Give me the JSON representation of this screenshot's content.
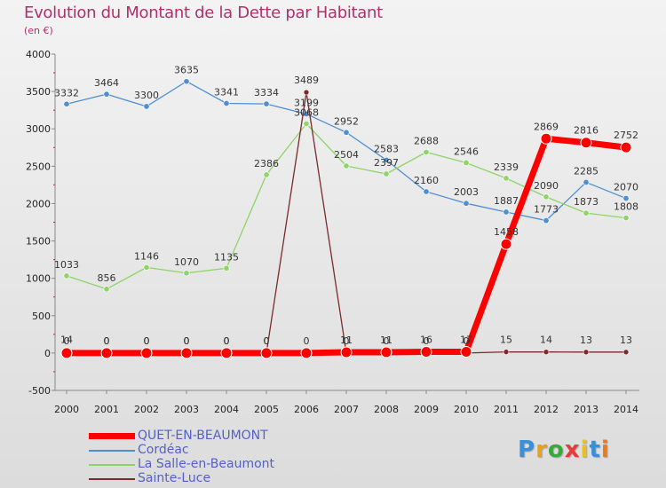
{
  "title": "Evolution du Montant de la Dette par Habitant",
  "subtitle": "(en €)",
  "brand": "Proxiti",
  "chart_data": {
    "type": "line",
    "title": "Evolution du Montant de la Dette par Habitant",
    "subtitle": "(en €)",
    "x": [
      2000,
      2001,
      2002,
      2003,
      2004,
      2005,
      2006,
      2007,
      2008,
      2009,
      2010,
      2011,
      2012,
      2013,
      2014
    ],
    "ylim": [
      -500,
      4000
    ],
    "yticks": [
      -500,
      0,
      500,
      1000,
      1500,
      2000,
      2500,
      3000,
      3500,
      4000
    ],
    "grid": false,
    "legend_position": "bottom-left",
    "series": [
      {
        "name": "Cordéac",
        "color": "#4f8fd0",
        "values": [
          3332,
          3464,
          3300,
          3635,
          3341,
          3334,
          3199,
          2952,
          2583,
          2160,
          2003,
          1887,
          1773,
          2285,
          2070
        ]
      },
      {
        "name": "La Salle-en-Beaumont",
        "color": "#8fd468",
        "values": [
          1033,
          856,
          1146,
          1070,
          1135,
          2386,
          3068,
          2504,
          2397,
          2688,
          2546,
          2339,
          2090,
          1873,
          1808
        ]
      },
      {
        "name": "Sainte-Luce",
        "color": "#7a2a2a",
        "values": [
          14,
          0,
          0,
          0,
          0,
          0,
          3489,
          0,
          0,
          0,
          0,
          15,
          14,
          13,
          13
        ],
        "labels": [
          "14",
          "0",
          "0",
          "0",
          "0",
          "0",
          "3489",
          "0",
          "0",
          "0",
          "0",
          "15",
          "14",
          "13",
          "13"
        ]
      },
      {
        "name": "QUET-EN-BEAUMONT",
        "color": "#ff0000",
        "values": [
          0,
          0,
          0,
          0,
          0,
          0,
          0,
          11,
          11,
          16,
          17,
          1458,
          2869,
          2816,
          2752
        ],
        "labels": [
          "0",
          "0",
          "0",
          "0",
          "0",
          "0",
          "0",
          "11",
          "11",
          "16",
          "17",
          "1458",
          "2869",
          "2816",
          "2752"
        ]
      }
    ],
    "legend": [
      "QUET-EN-BEAUMONT",
      "Cordéac",
      "La Salle-en-Beaumont",
      "Sainte-Luce"
    ]
  }
}
